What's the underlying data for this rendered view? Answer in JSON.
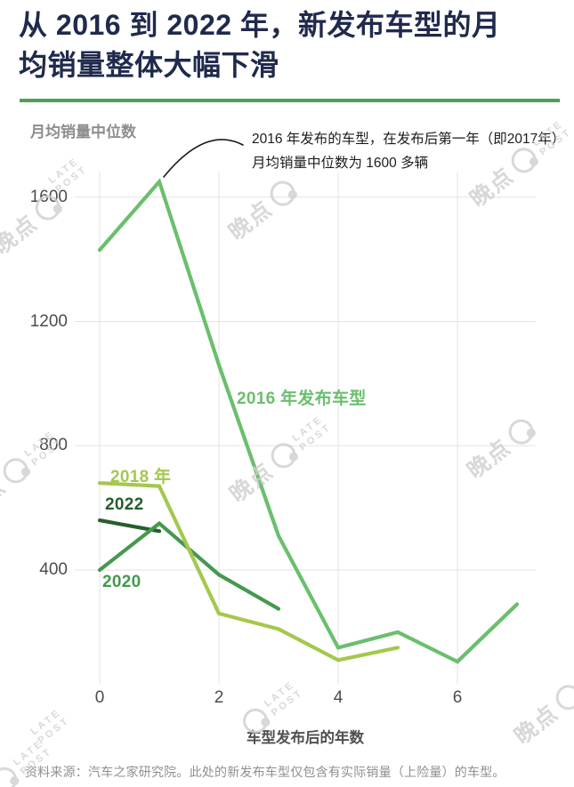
{
  "title": {
    "line1": "从 2016 到 2022 年，新发布车型的月",
    "line2": "均销量整体大幅下滑"
  },
  "y_axis_title": "月均销量中位数",
  "x_axis_title": "车型发布后的年数",
  "annotation": {
    "line1": "2016 年发布的车型，在发布后第一年（即2017年）",
    "line2": "月均销量中位数为 1600 多辆"
  },
  "source": "资料来源：汽车之家研究院。此处的新发布车型仅包含有实际销量（上险量）的车型。",
  "watermark": {
    "cn": "晚点",
    "en_line1": "LATE",
    "en_line2": "POST"
  },
  "colors": {
    "background": "#ffffff",
    "title": "#1f2a4c",
    "accent_green": "#4f9f55",
    "grid": "#e3e3e3",
    "tick": "#4c4c4c",
    "axis_title": "#8e8e8e",
    "annotation": "#1c1c1c",
    "arrow": "#1a1a1a",
    "source": "#8f8f8f",
    "watermark": "#cfcfcf"
  },
  "chart_data": {
    "type": "line",
    "title": "从 2016 到 2022 年，新发布车型的月均销量整体大幅下滑",
    "xlabel": "车型发布后的年数",
    "ylabel": "月均销量中位数",
    "xticks": [
      0,
      2,
      4,
      6
    ],
    "yticks": [
      1600,
      1200,
      800,
      400
    ],
    "xlim": [
      0,
      7.3
    ],
    "ylim": [
      30,
      1680
    ],
    "grid": true,
    "legend_position": "inline-labels",
    "series": [
      {
        "name": "2022",
        "label": "2022",
        "color": "#265e2d",
        "x": [
          0,
          1
        ],
        "values": [
          560,
          525
        ]
      },
      {
        "name": "2020",
        "label": "2020",
        "color": "#44994f",
        "x": [
          0,
          1,
          2,
          3
        ],
        "values": [
          400,
          550,
          385,
          275
        ]
      },
      {
        "name": "2018",
        "label": "2018 年",
        "color": "#a4c84e",
        "x": [
          0,
          1,
          2,
          3,
          4,
          5
        ],
        "values": [
          680,
          670,
          260,
          210,
          110,
          150
        ]
      },
      {
        "name": "2016",
        "label": "2016 年发布车型",
        "color": "#6abf6d",
        "x": [
          0,
          1,
          2,
          3,
          4,
          5,
          6,
          7
        ],
        "values": [
          1430,
          1650,
          1060,
          510,
          150,
          200,
          105,
          290
        ]
      }
    ],
    "annotation_note": "2016 年发布的车型，在发布后第一年（即2017年）月均销量中位数为 1600 多辆"
  }
}
